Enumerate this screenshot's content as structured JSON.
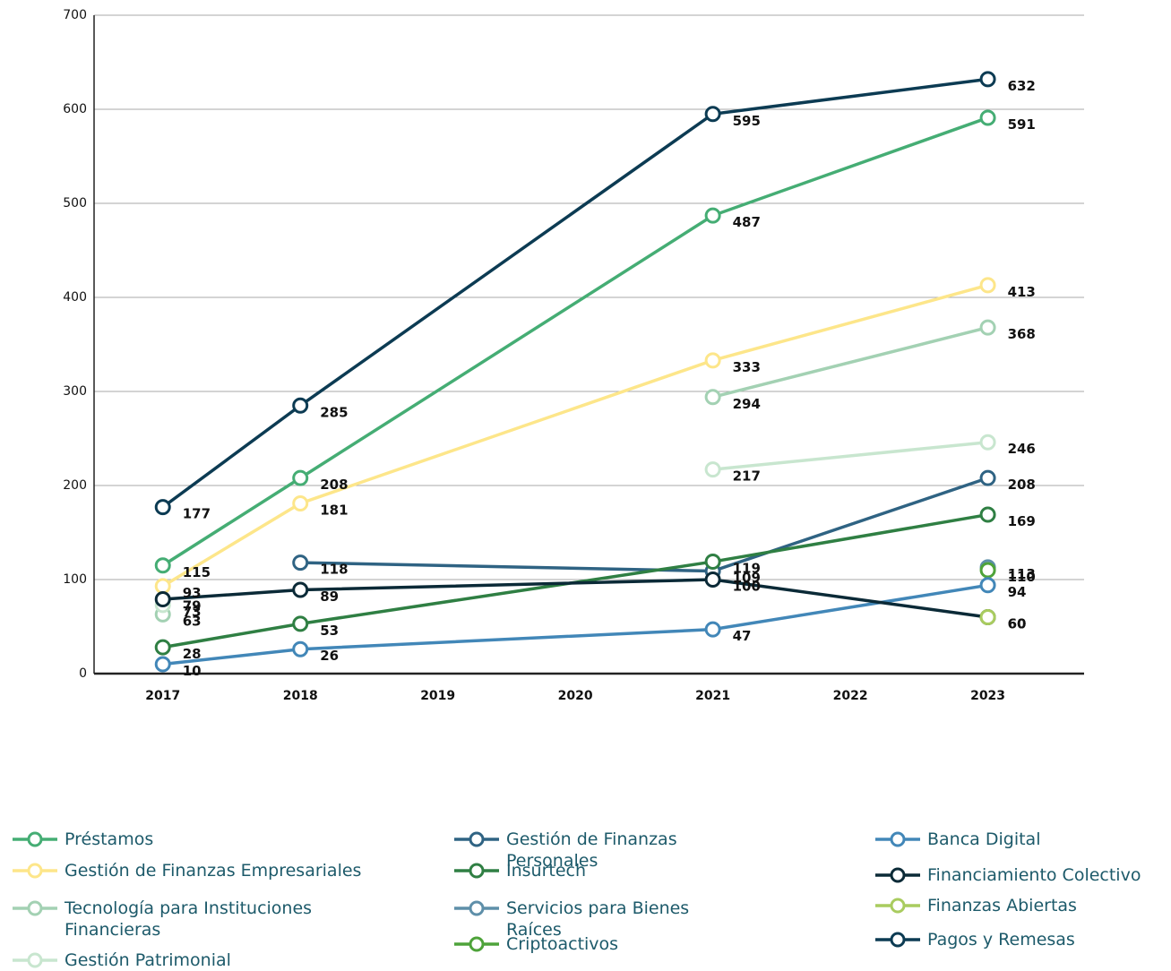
{
  "chart_data": {
    "type": "line",
    "x": [
      2017,
      2018,
      2021,
      2023
    ],
    "xlim": [
      2016.5,
      2023.7
    ],
    "xticks": [
      2017,
      2018,
      2019,
      2020,
      2021,
      2022,
      2023
    ],
    "ylim": [
      0,
      700
    ],
    "yticks": [
      0,
      100,
      200,
      300,
      400,
      500,
      600,
      700
    ],
    "grid": true,
    "series": [
      {
        "name": "Préstamos",
        "color": "#45ad74",
        "values": [
          115,
          208,
          487,
          591
        ]
      },
      {
        "name": "Gestión de Finanzas Empresariales",
        "color": "#fde68a",
        "values": [
          93,
          181,
          333,
          413
        ]
      },
      {
        "name": "Tecnología para Instituciones Financieras",
        "color": "#a3d1b3",
        "values": [
          63,
          null,
          294,
          368
        ]
      },
      {
        "name": "Gestión Patrimonial",
        "color": "#c8e6cf",
        "values": [
          73,
          null,
          217,
          246
        ]
      },
      {
        "name": "Gestión de Finanzas Personales",
        "color": "#2f6383",
        "values": [
          null,
          118,
          109,
          208
        ]
      },
      {
        "name": "Insurtech",
        "color": "#2f7f43",
        "values": [
          28,
          53,
          119,
          169
        ]
      },
      {
        "name": "Servicios para Bienes Raíces",
        "color": "#5e8fa9",
        "values": [
          null,
          null,
          null,
          113
        ]
      },
      {
        "name": "Criptoactivos",
        "color": "#4ea33a",
        "values": [
          null,
          null,
          null,
          110
        ]
      },
      {
        "name": "Banca Digital",
        "color": "#4287b8",
        "values": [
          10,
          26,
          47,
          94
        ]
      },
      {
        "name": "Financiamiento Colectivo",
        "color": "#0b2a37",
        "values": [
          79,
          89,
          100,
          60
        ]
      },
      {
        "name": "Finanzas Abiertas",
        "color": "#a9cc5f",
        "values": [
          null,
          null,
          null,
          60
        ]
      },
      {
        "name": "Pagos y Remesas",
        "color": "#0c3b53",
        "values": [
          177,
          285,
          595,
          632
        ]
      }
    ]
  }
}
